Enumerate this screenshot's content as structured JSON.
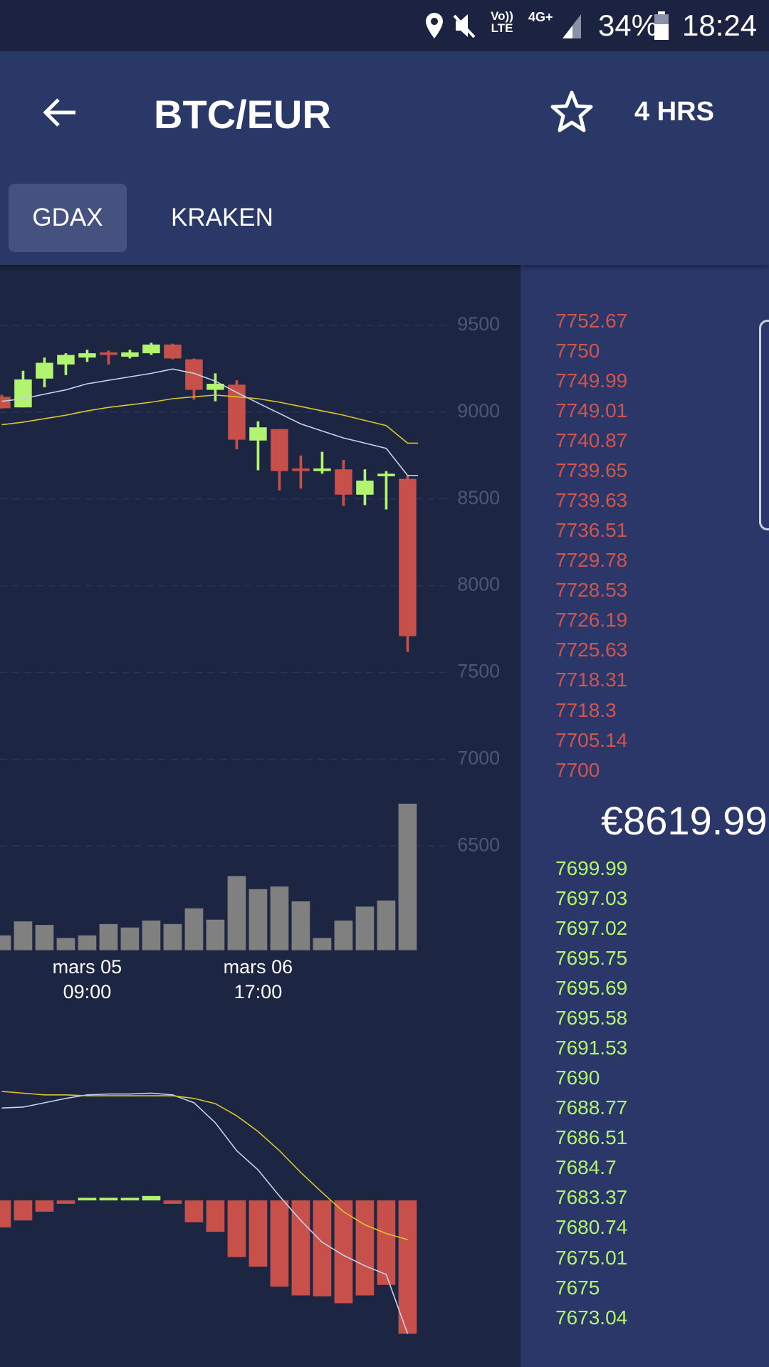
{
  "status_bar": {
    "network_a": "Vo)) LTE",
    "network_b": "4G+",
    "battery": "34%",
    "time": "18:24"
  },
  "header": {
    "title": "BTC/EUR",
    "interval": "4 HRS"
  },
  "tabs": [
    "GDAX",
    "KRAKEN"
  ],
  "chart_data": {
    "type": "candlestick",
    "categories": [
      null,
      null,
      null,
      null,
      "mars 05\n09:00",
      null,
      null,
      null,
      null,
      null,
      null,
      null,
      "mars 06\n17:00",
      null,
      null,
      null,
      null,
      null,
      null,
      null
    ],
    "open": [
      9088,
      9027,
      9193,
      9274,
      9314,
      9344,
      9319,
      9339,
      9389,
      9304,
      9128,
      9158,
      8836,
      8902,
      8675,
      8660,
      8670,
      8524,
      8630,
      8615
    ],
    "high": [
      9100,
      9238,
      9314,
      9339,
      9359,
      9354,
      9359,
      9399,
      9394,
      9309,
      9223,
      9183,
      8947,
      8902,
      8750,
      8771,
      8725,
      8670,
      8660,
      8635
    ],
    "low": [
      9020,
      9027,
      9143,
      9213,
      9289,
      9274,
      9309,
      9329,
      9304,
      9072,
      9062,
      8786,
      8665,
      8549,
      8559,
      8645,
      8459,
      8464,
      8439,
      7619
    ],
    "close": [
      9022,
      9188,
      9284,
      9329,
      9339,
      9334,
      9344,
      9389,
      9309,
      9128,
      9163,
      8841,
      8912,
      8660,
      8660,
      8675,
      8524,
      8605,
      8645,
      7709
    ],
    "up_color": "#b2f36f",
    "down_color": "#c8504a",
    "ylim": [
      5900,
      9850
    ],
    "yticks": [
      9500,
      9000,
      8500,
      8000,
      7500,
      7000,
      6500
    ],
    "grid": true,
    "overlays": [
      {
        "color": "#c7d3ee",
        "values": [
          9062,
          9077,
          9103,
          9128,
          9163,
          9183,
          9203,
          9223,
          9248,
          9223,
          9178,
          9113,
          9052,
          8992,
          8932,
          8891,
          8851,
          8821,
          8791,
          8635
        ]
      },
      {
        "color": "#d8c62a",
        "values": [
          8927,
          8942,
          8962,
          8982,
          9007,
          9027,
          9042,
          9057,
          9077,
          9088,
          9098,
          9088,
          9077,
          9057,
          9032,
          9007,
          8982,
          8952,
          8922,
          8821
        ]
      }
    ],
    "volume": {
      "color": "#808080",
      "values": [
        17,
        33,
        29,
        14,
        17,
        30,
        26,
        34,
        30,
        48,
        35,
        85,
        70,
        73,
        56,
        14,
        34,
        50,
        57,
        168
      ]
    },
    "macd": {
      "histogram": [
        -31,
        -23,
        -13,
        -4,
        3,
        3,
        3,
        5,
        -4,
        -25,
        -36,
        -65,
        -76,
        -99,
        -109,
        -110,
        -118,
        -109,
        -97,
        -153
      ],
      "lines": [
        {
          "color": "#c7d3ee",
          "values": [
            106,
            107,
            112,
            117,
            121,
            122,
            122,
            123,
            121,
            112,
            89,
            57,
            35,
            5,
            -23,
            -48,
            -63,
            -75,
            -85,
            -153
          ]
        },
        {
          "color": "#d8c62a",
          "values": [
            125,
            123,
            121,
            121,
            120,
            120,
            120,
            120,
            120,
            117,
            111,
            97,
            79,
            57,
            32,
            9,
            -13,
            -28,
            -38,
            -45
          ]
        }
      ]
    }
  },
  "order_book": {
    "asks": [
      "7752.67",
      "7750",
      "7749.99",
      "7749.01",
      "7740.87",
      "7739.65",
      "7739.63",
      "7736.51",
      "7729.78",
      "7728.53",
      "7726.19",
      "7725.63",
      "7718.31",
      "7718.3",
      "7705.14",
      "7700"
    ],
    "price": "€8619.99",
    "bids": [
      "7699.99",
      "7697.03",
      "7697.02",
      "7695.75",
      "7695.69",
      "7695.58",
      "7691.53",
      "7690",
      "7688.77",
      "7686.51",
      "7684.7",
      "7683.37",
      "7680.74",
      "7675.01",
      "7675",
      "7673.04"
    ]
  }
}
